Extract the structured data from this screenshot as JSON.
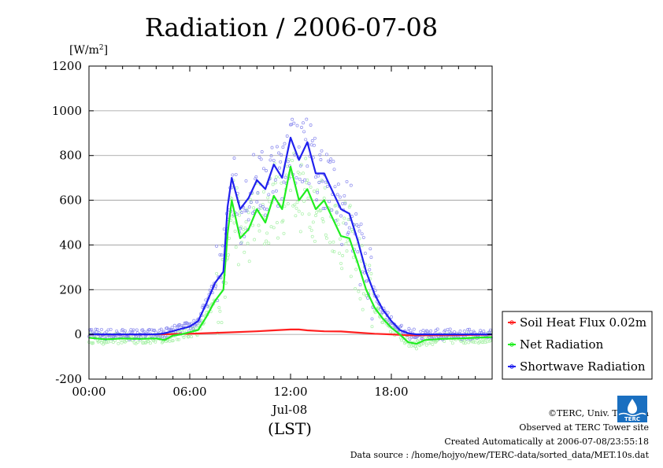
{
  "chart_data": {
    "type": "line",
    "title": "Radiation / 2006-07-08",
    "ylabel": "[W/m",
    "ylabel_sup": "2",
    "ylabel_end": "]",
    "xlabel_date": "Jul-08",
    "xlabel_tz": "(LST)",
    "ylim": [
      -200,
      1200
    ],
    "xlim_hours": [
      0,
      24
    ],
    "y_ticks": [
      "-200",
      "0",
      "200",
      "400",
      "600",
      "800",
      "1000",
      "1200"
    ],
    "x_ticks": [
      {
        "hour": 0,
        "label": "00:00"
      },
      {
        "hour": 6,
        "label": "06:00"
      },
      {
        "hour": 12,
        "label": "12:00"
      },
      {
        "hour": 18,
        "label": "18:00"
      }
    ],
    "grid": true,
    "legend_position": "bottom-right",
    "series": [
      {
        "name": "Soil Heat Flux 0.02m",
        "color": "#ff2020",
        "points": [
          [
            0,
            0
          ],
          [
            4,
            0
          ],
          [
            6,
            3
          ],
          [
            8,
            8
          ],
          [
            10,
            14
          ],
          [
            11,
            18
          ],
          [
            12,
            22
          ],
          [
            12.5,
            22
          ],
          [
            13,
            18
          ],
          [
            14,
            14
          ],
          [
            15,
            13
          ],
          [
            16,
            8
          ],
          [
            17,
            3
          ],
          [
            18,
            0
          ],
          [
            19,
            -4
          ],
          [
            20,
            -4
          ],
          [
            22,
            -3
          ],
          [
            24,
            -1
          ]
        ]
      },
      {
        "name": "Net Radiation",
        "color": "#20ee20",
        "points": [
          [
            0,
            -15
          ],
          [
            1,
            -22
          ],
          [
            2,
            -18
          ],
          [
            3,
            -20
          ],
          [
            4,
            -18
          ],
          [
            4.5,
            -25
          ],
          [
            5,
            -5
          ],
          [
            5.5,
            0
          ],
          [
            6,
            10
          ],
          [
            6.5,
            20
          ],
          [
            7,
            80
          ],
          [
            7.5,
            150
          ],
          [
            8,
            200
          ],
          [
            8.25,
            450
          ],
          [
            8.5,
            600
          ],
          [
            9,
            430
          ],
          [
            9.5,
            470
          ],
          [
            10,
            560
          ],
          [
            10.5,
            500
          ],
          [
            11,
            620
          ],
          [
            11.5,
            560
          ],
          [
            12,
            750
          ],
          [
            12.5,
            600
          ],
          [
            13,
            650
          ],
          [
            13.5,
            560
          ],
          [
            14,
            600
          ],
          [
            14.5,
            520
          ],
          [
            15,
            440
          ],
          [
            15.5,
            430
          ],
          [
            16,
            320
          ],
          [
            16.5,
            200
          ],
          [
            17,
            120
          ],
          [
            17.5,
            70
          ],
          [
            18,
            30
          ],
          [
            18.5,
            0
          ],
          [
            19,
            -35
          ],
          [
            19.5,
            -42
          ],
          [
            20,
            -25
          ],
          [
            21,
            -20
          ],
          [
            22,
            -18
          ],
          [
            23,
            -15
          ],
          [
            24,
            -12
          ]
        ]
      },
      {
        "name": "Shortwave Radiation",
        "color": "#2020ee",
        "points": [
          [
            0,
            0
          ],
          [
            4,
            0
          ],
          [
            4.5,
            5
          ],
          [
            5,
            15
          ],
          [
            5.5,
            25
          ],
          [
            6,
            35
          ],
          [
            6.5,
            60
          ],
          [
            7,
            140
          ],
          [
            7.5,
            230
          ],
          [
            8,
            280
          ],
          [
            8.25,
            570
          ],
          [
            8.5,
            700
          ],
          [
            9,
            560
          ],
          [
            9.5,
            610
          ],
          [
            10,
            690
          ],
          [
            10.5,
            650
          ],
          [
            11,
            760
          ],
          [
            11.5,
            700
          ],
          [
            12,
            880
          ],
          [
            12.5,
            780
          ],
          [
            13,
            860
          ],
          [
            13.5,
            720
          ],
          [
            14,
            720
          ],
          [
            14.5,
            640
          ],
          [
            15,
            560
          ],
          [
            15.5,
            540
          ],
          [
            16,
            420
          ],
          [
            16.5,
            280
          ],
          [
            17,
            180
          ],
          [
            17.5,
            110
          ],
          [
            18,
            60
          ],
          [
            18.5,
            20
          ],
          [
            19,
            5
          ],
          [
            19.5,
            0
          ],
          [
            24,
            0
          ]
        ]
      }
    ]
  },
  "credits": {
    "copyright": "©TERC, Univ. Tsukuba",
    "observed": "Observed at TERC Tower site",
    "created": "Created Automatically at 2006-07-08/23:55:18",
    "source": "Data source : /home/hojyo/new/TERC-data/sorted_data/MET.10s.dat"
  },
  "logo": {
    "text": "TERC",
    "color": "#1a6fc0"
  }
}
